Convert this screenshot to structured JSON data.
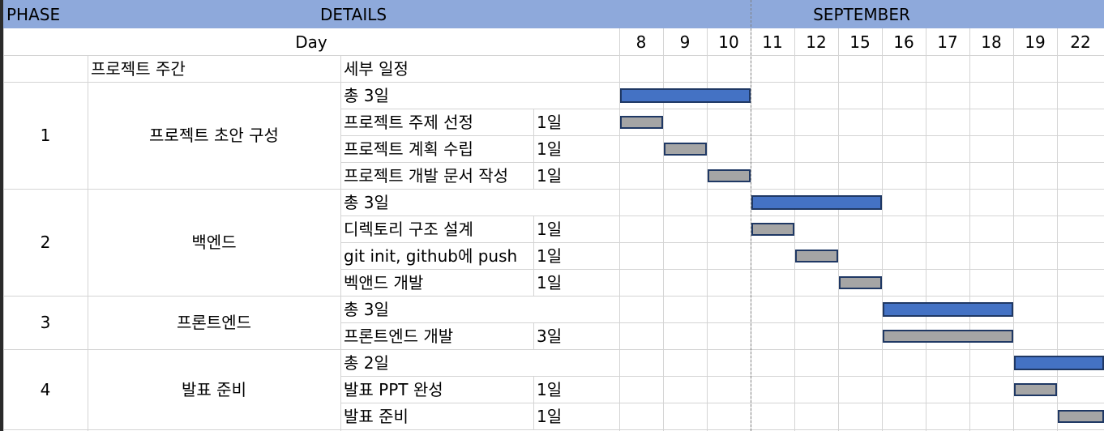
{
  "header": {
    "phase_label": "PHASE",
    "details_label": "DETAILS",
    "month_label": "SEPTEMBER",
    "day_label": "Day",
    "days": [
      "8",
      "9",
      "10",
      "11",
      "12",
      "15",
      "16",
      "17",
      "18",
      "19",
      "22"
    ]
  },
  "subheader": {
    "project_week_label": "프로젝트 주간",
    "detail_schedule_label": "세부 일정"
  },
  "phases": [
    {
      "number": "1",
      "name": "프로젝트 초안 구성",
      "total": {
        "label": "총 3일",
        "start_day": "8",
        "end_day": "10"
      },
      "tasks": [
        {
          "name": "프로젝트 주제 선정",
          "duration": "1일",
          "start_day": "8",
          "end_day": "8"
        },
        {
          "name": "프로젝트 계획 수립",
          "duration": "1일",
          "start_day": "9",
          "end_day": "9"
        },
        {
          "name": "프로젝트 개발 문서 작성",
          "duration": "1일",
          "start_day": "10",
          "end_day": "10"
        }
      ]
    },
    {
      "number": "2",
      "name": "백엔드",
      "total": {
        "label": "총 3일",
        "start_day": "11",
        "end_day": "15"
      },
      "tasks": [
        {
          "name": "디렉토리 구조 설계",
          "duration": "1일",
          "start_day": "11",
          "end_day": "11"
        },
        {
          "name": "git init, github에 push",
          "duration": "1일",
          "start_day": "12",
          "end_day": "12"
        },
        {
          "name": "벡앤드 개발",
          "duration": "1일",
          "start_day": "15",
          "end_day": "15"
        }
      ]
    },
    {
      "number": "3",
      "name": "프론트엔드",
      "total": {
        "label": "총 3일",
        "start_day": "16",
        "end_day": "18"
      },
      "tasks": [
        {
          "name": "프론트엔드 개발",
          "duration": "3일",
          "start_day": "16",
          "end_day": "18"
        }
      ]
    },
    {
      "number": "4",
      "name": "발표 준비",
      "total": {
        "label": "총 2일",
        "start_day": "19",
        "end_day": "22"
      },
      "tasks": [
        {
          "name": "발표 PPT 완성",
          "duration": "1일",
          "start_day": "19",
          "end_day": "19"
        },
        {
          "name": "발표 준비",
          "duration": "1일",
          "start_day": "22",
          "end_day": "22"
        }
      ]
    }
  ],
  "colors": {
    "header_fill": "#8ea9db",
    "total_bar": "#4472c4",
    "task_bar": "#a5a5a5",
    "bar_border": "#1f3864",
    "gridline": "#d4d4d4"
  }
}
